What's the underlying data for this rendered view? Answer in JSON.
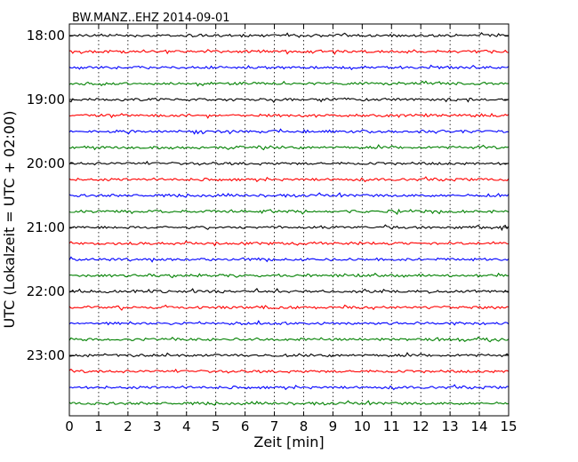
{
  "chart_data": {
    "type": "line",
    "title": "BW.MANZ..EHZ 2014-09-01",
    "xlabel": "Zeit  [min]",
    "ylabel": "UTC (Lokalzeit = UTC + 02:00)",
    "xlim": [
      0,
      15
    ],
    "x_ticks": [
      "0",
      "1",
      "2",
      "3",
      "4",
      "5",
      "6",
      "7",
      "8",
      "9",
      "10",
      "11",
      "12",
      "13",
      "14",
      "15"
    ],
    "y_ticks": [
      "18:00",
      "19:00",
      "20:00",
      "21:00",
      "22:00",
      "23:00"
    ],
    "grid": "vertical dotted",
    "trace_interval_minutes": 15,
    "trace_colors": [
      "#000000",
      "#ff0000",
      "#0000ff",
      "#008000"
    ],
    "traces": [
      {
        "start": "18:00",
        "color": "#000000"
      },
      {
        "start": "18:15",
        "color": "#ff0000"
      },
      {
        "start": "18:30",
        "color": "#0000ff"
      },
      {
        "start": "18:45",
        "color": "#008000"
      },
      {
        "start": "19:00",
        "color": "#000000"
      },
      {
        "start": "19:15",
        "color": "#ff0000"
      },
      {
        "start": "19:30",
        "color": "#0000ff"
      },
      {
        "start": "19:45",
        "color": "#008000"
      },
      {
        "start": "20:00",
        "color": "#000000"
      },
      {
        "start": "20:15",
        "color": "#ff0000"
      },
      {
        "start": "20:30",
        "color": "#0000ff"
      },
      {
        "start": "20:45",
        "color": "#008000"
      },
      {
        "start": "21:00",
        "color": "#000000"
      },
      {
        "start": "21:15",
        "color": "#ff0000"
      },
      {
        "start": "21:30",
        "color": "#0000ff"
      },
      {
        "start": "21:45",
        "color": "#008000"
      },
      {
        "start": "22:00",
        "color": "#000000"
      },
      {
        "start": "22:15",
        "color": "#ff0000"
      },
      {
        "start": "22:30",
        "color": "#0000ff"
      },
      {
        "start": "22:45",
        "color": "#008000"
      },
      {
        "start": "23:00",
        "color": "#000000"
      },
      {
        "start": "23:15",
        "color": "#ff0000"
      },
      {
        "start": "23:30",
        "color": "#0000ff"
      },
      {
        "start": "23:45",
        "color": "#008000"
      }
    ]
  }
}
